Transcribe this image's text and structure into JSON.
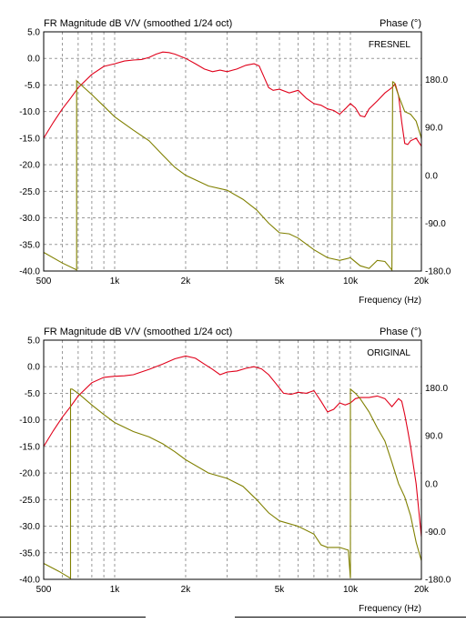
{
  "chart_data": [
    {
      "type": "line",
      "title": "FR Magnitude dB V/V (smoothed 1/24 oct)",
      "right_title": "Phase (°)",
      "annotation": "FRESNEL",
      "xlabel": "Frequency (Hz)",
      "x_scale": "log",
      "xlim": [
        500,
        20000
      ],
      "ylim": [
        -40,
        5
      ],
      "y2lim": [
        -180,
        270
      ],
      "x_ticks": [
        500,
        1000,
        2000,
        5000,
        10000,
        20000
      ],
      "x_tick_labels": [
        "500",
        "1k",
        "2k",
        "5k",
        "10k",
        "20k"
      ],
      "y_ticks": [
        5,
        0,
        -5,
        -10,
        -15,
        -20,
        -25,
        -30,
        -35,
        -40
      ],
      "y_tick_labels": [
        "5.0",
        "0.0",
        "-5.0",
        "-10.0",
        "-15.0",
        "-20.0",
        "-25.0",
        "-30.0",
        "-35.0",
        "-40.0"
      ],
      "y2_ticks": [
        180,
        90,
        0,
        -90,
        -180
      ],
      "y2_tick_labels": [
        "180.0",
        "90.0",
        "0.0",
        "-90.0",
        "-180.0"
      ],
      "grid": true,
      "series": [
        {
          "axis": "left",
          "color": "#e0001a",
          "x": [
            500,
            550,
            600,
            650,
            700,
            800,
            900,
            1000,
            1100,
            1200,
            1300,
            1400,
            1500,
            1600,
            1700,
            1800,
            2000,
            2200,
            2400,
            2600,
            2800,
            3000,
            3300,
            3600,
            3900,
            4100,
            4300,
            4500,
            4700,
            5000,
            5500,
            6000,
            6500,
            7000,
            7500,
            8000,
            8500,
            9000,
            9500,
            10000,
            10500,
            11000,
            11500,
            12000,
            13000,
            14000,
            15000,
            15500,
            16000,
            16500,
            17000,
            17500,
            18000,
            19000,
            20000
          ],
          "values": [
            -15,
            -12,
            -9.5,
            -7.5,
            -5.5,
            -3,
            -1.5,
            -1,
            -0.5,
            -0.3,
            -0.2,
            0.2,
            0.8,
            1.2,
            1.1,
            0.8,
            0,
            -1,
            -2,
            -2.5,
            -2.2,
            -2.5,
            -2,
            -1.3,
            -1,
            -1.4,
            -3.5,
            -5.5,
            -6,
            -5.8,
            -6.5,
            -6,
            -7.5,
            -8.5,
            -8.8,
            -9.5,
            -9.8,
            -10.5,
            -9.5,
            -8.5,
            -9.3,
            -10.8,
            -11,
            -9.5,
            -8,
            -6.5,
            -5.5,
            -4.8,
            -7,
            -12,
            -16,
            -16.2,
            -15.5,
            -15,
            -16.5
          ]
        },
        {
          "axis": "right",
          "color": "#808000",
          "x": [
            500,
            600,
            690,
            690,
            700,
            800,
            900,
            1000,
            1200,
            1400,
            1600,
            1800,
            2000,
            2500,
            3000,
            3500,
            4000,
            4500,
            5000,
            5500,
            6000,
            7000,
            8000,
            9000,
            10000,
            11000,
            12000,
            13000,
            14000,
            14500,
            15000,
            15100,
            15300,
            16000,
            17000,
            18000,
            19000,
            20000
          ],
          "values": [
            -145,
            -165,
            -178,
            178,
            175,
            152,
            130,
            110,
            85,
            65,
            38,
            15,
            0,
            -20,
            -28,
            -45,
            -65,
            -90,
            -108,
            -110,
            -118,
            -140,
            -155,
            -160,
            -155,
            -170,
            -175,
            -160,
            -162,
            -170,
            -178,
            176,
            175,
            150,
            120,
            115,
            102,
            70
          ]
        }
      ]
    },
    {
      "type": "line",
      "title": "FR Magnitude dB V/V (smoothed 1/24 oct)",
      "right_title": "Phase (°)",
      "annotation": "ORIGINAL",
      "xlabel": "Frequency (Hz)",
      "x_scale": "log",
      "xlim": [
        500,
        20000
      ],
      "ylim": [
        -40,
        5
      ],
      "y2lim": [
        -180,
        270
      ],
      "x_ticks": [
        500,
        1000,
        2000,
        5000,
        10000,
        20000
      ],
      "x_tick_labels": [
        "500",
        "1k",
        "2k",
        "5k",
        "10k",
        "20k"
      ],
      "y_ticks": [
        5,
        0,
        -5,
        -10,
        -15,
        -20,
        -25,
        -30,
        -35,
        -40
      ],
      "y_tick_labels": [
        "5.0",
        "0.0",
        "-5.0",
        "-10.0",
        "-15.0",
        "-20.0",
        "-25.0",
        "-30.0",
        "-35.0",
        "-40.0"
      ],
      "y2_ticks": [
        180,
        90,
        0,
        -90,
        -180
      ],
      "y2_tick_labels": [
        "180.0",
        "90.0",
        "0.0",
        "-90.0",
        "-180.0"
      ],
      "grid": true,
      "series": [
        {
          "axis": "left",
          "color": "#e0001a",
          "x": [
            500,
            550,
            600,
            650,
            700,
            800,
            900,
            1000,
            1100,
            1200,
            1400,
            1600,
            1800,
            2000,
            2200,
            2400,
            2600,
            2800,
            3000,
            3300,
            3600,
            3900,
            4200,
            4500,
            4800,
            5200,
            5600,
            6000,
            6500,
            7000,
            7500,
            8000,
            8500,
            9000,
            9500,
            10000,
            10500,
            11000,
            12000,
            13000,
            14000,
            15000,
            16000,
            16500,
            17000,
            17500,
            18000,
            19000,
            20000
          ],
          "values": [
            -15,
            -12,
            -9.5,
            -7.5,
            -5.5,
            -3,
            -2,
            -1.8,
            -1.7,
            -1.5,
            -0.5,
            0.5,
            1.5,
            2,
            1.6,
            0.5,
            -0.5,
            -1.5,
            -1,
            -0.8,
            -0.3,
            0,
            -0.4,
            -1.5,
            -3,
            -5,
            -5.2,
            -4.8,
            -5,
            -4.5,
            -6.5,
            -8.5,
            -8,
            -6.8,
            -7.2,
            -6.8,
            -6,
            -5.8,
            -5.8,
            -5.5,
            -6,
            -7.5,
            -6,
            -6.5,
            -9,
            -12,
            -15,
            -22,
            -32
          ]
        },
        {
          "axis": "right",
          "color": "#808000",
          "x": [
            500,
            580,
            650,
            650,
            660,
            700,
            800,
            900,
            1000,
            1200,
            1400,
            1600,
            1800,
            2000,
            2500,
            3000,
            3500,
            4000,
            4500,
            5000,
            6000,
            7000,
            7500,
            8000,
            9000,
            9800,
            10000,
            10000,
            10500,
            11000,
            12000,
            13000,
            14000,
            15000,
            16000,
            17000,
            18000,
            19000,
            20000
          ],
          "values": [
            -150,
            -165,
            -178,
            178,
            178,
            170,
            148,
            130,
            115,
            98,
            88,
            75,
            60,
            45,
            20,
            10,
            -5,
            -30,
            -55,
            -70,
            -80,
            -95,
            -115,
            -120,
            -120,
            -125,
            -178,
            178,
            170,
            160,
            135,
            105,
            80,
            40,
            0,
            -25,
            -60,
            -110,
            -145
          ]
        }
      ]
    }
  ]
}
